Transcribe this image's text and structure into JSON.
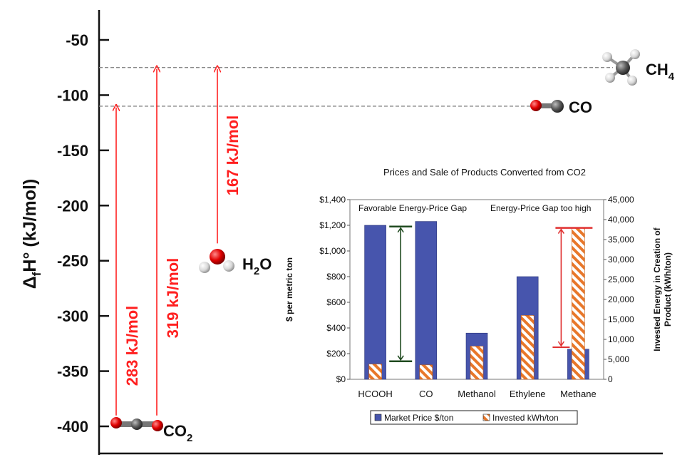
{
  "chart_data": [
    {
      "type": "energy-level-diagram",
      "ylabel_main": "Δ",
      "ylabel_sub": "f",
      "ylabel_rest": "H° (kJ/mol)",
      "ylim": [
        -425,
        -15
      ],
      "yticks": [
        -50,
        -100,
        -150,
        -200,
        -250,
        -300,
        -350,
        -400
      ],
      "species": [
        {
          "id": "co2",
          "label": "CO",
          "label_sub": "2",
          "dHf": -394
        },
        {
          "id": "h2o",
          "label": "H",
          "label_sub": "2",
          "label_rest": "O",
          "dHf": -242
        },
        {
          "id": "co",
          "label": "CO",
          "label_sub": "",
          "dHf": -110
        },
        {
          "id": "ch4",
          "label": "CH",
          "label_sub": "4",
          "dHf": -75
        }
      ],
      "levels": [
        -75,
        -110
      ],
      "arrows": [
        {
          "label": "283 kJ/mol",
          "from": -394,
          "to": -110
        },
        {
          "label": "319 kJ/mol",
          "from": -394,
          "to": -75
        },
        {
          "label": "167 kJ/mol",
          "from": -242,
          "to": -75
        }
      ]
    },
    {
      "type": "bar",
      "title": "Prices and Sale of Products Converted from CO2",
      "ylabel": "$ per metric ton",
      "y2label": "Invested Energy in Creation of Product (kWh/ton)",
      "categories": [
        "HCOOH",
        "CO",
        "Methanol",
        "Ethylene",
        "Methane"
      ],
      "ylim": [
        0,
        1400
      ],
      "yticks": [
        "$0",
        "$200",
        "$400",
        "$600",
        "$800",
        "$1,000",
        "$1,200",
        "$1,400"
      ],
      "y2lim": [
        0,
        45000
      ],
      "y2ticks": [
        "0",
        "5,000",
        "10,000",
        "15,000",
        "20,000",
        "25,000",
        "30,000",
        "35,000",
        "40,000",
        "45,000"
      ],
      "series": [
        {
          "name": "Market Price $/ton",
          "axis": "left",
          "values": [
            1200,
            1230,
            360,
            800,
            235
          ]
        },
        {
          "name": "Invested kWh/ton",
          "axis": "right",
          "values": [
            3800,
            3600,
            8300,
            16000,
            38000
          ]
        }
      ],
      "annotations": [
        {
          "text": "Favorable Energy-Price Gap",
          "category": "HCOOH",
          "from": 140,
          "to": 1190
        },
        {
          "text": "Energy-Price Gap too high",
          "category": "Methane",
          "from": 250,
          "to": 1180
        }
      ],
      "colors": {
        "price": "#4755ad",
        "energy_stripe_a": "#e8772a",
        "energy_stripe_b": "#ffffff",
        "good_arrow": "#1f4a1f",
        "bad_arrow": "#e03030"
      }
    }
  ]
}
